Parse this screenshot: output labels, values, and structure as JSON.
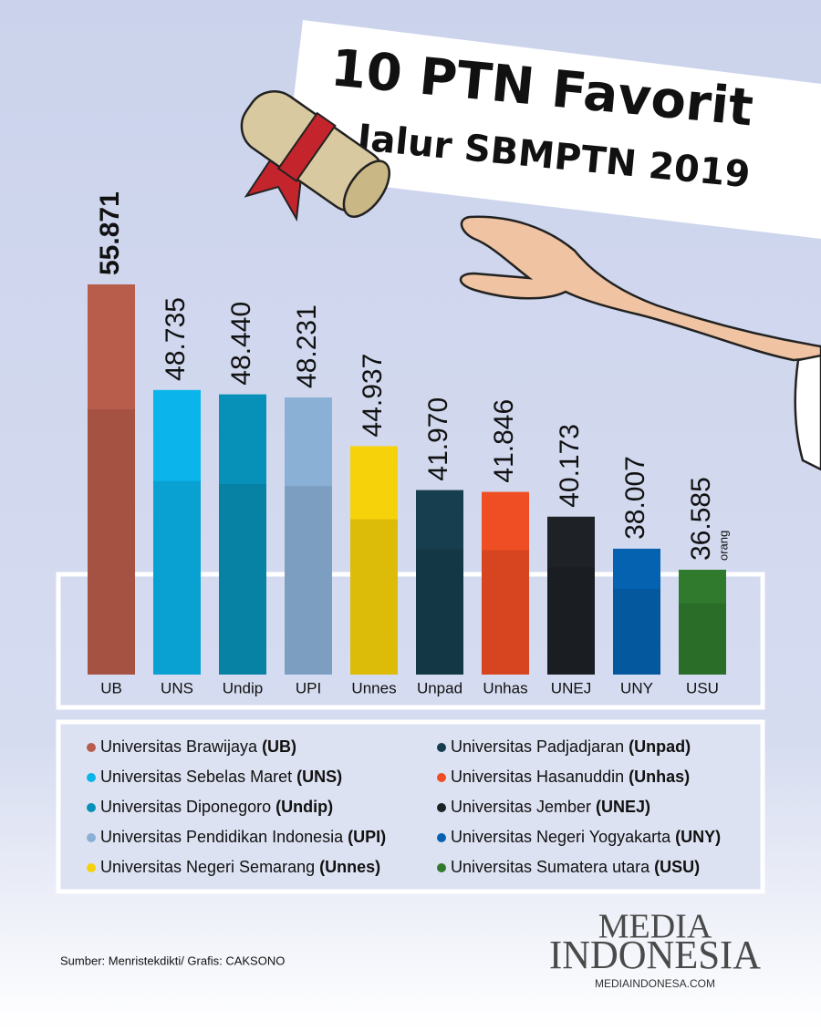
{
  "chart_data": {
    "type": "bar",
    "title": "10 PTN Favorit",
    "subtitle": "Jalur SBMPTN 2019",
    "categories": [
      "UB",
      "UNS",
      "Undip",
      "UPI",
      "Unnes",
      "Unpad",
      "Unhas",
      "UNEJ",
      "UNY",
      "USU"
    ],
    "values": [
      55871,
      48735,
      48440,
      48231,
      44937,
      41970,
      41846,
      40173,
      38007,
      36585
    ],
    "value_labels": [
      "55.871",
      "48.735",
      "48.440",
      "48.231",
      "44.937",
      "41.970",
      "41.846",
      "40.173",
      "38.007",
      "36.585"
    ],
    "colors": [
      "#b85c4b",
      "#0bb4ea",
      "#0891b8",
      "#8bb0d6",
      "#f5d20a",
      "#173e4f",
      "#ef4d23",
      "#1e2226",
      "#0462b0",
      "#2f7a2d"
    ],
    "unit_note": "orang",
    "legend": [
      {
        "name": "Universitas Brawijaya",
        "abbr": "(UB)"
      },
      {
        "name": "Universitas Sebelas Maret",
        "abbr": "(UNS)"
      },
      {
        "name": "Universitas Diponegoro",
        "abbr": "(Undip)"
      },
      {
        "name": "Universitas Pendidikan Indonesia",
        "abbr": "(UPI)"
      },
      {
        "name": "Universitas Negeri Semarang",
        "abbr": "(Unnes)"
      },
      {
        "name": "Universitas Padjadjaran",
        "abbr": "(Unpad)"
      },
      {
        "name": "Universitas Hasanuddin",
        "abbr": "(Unhas)"
      },
      {
        "name": "Universitas Jember",
        "abbr": "(UNEJ)"
      },
      {
        "name": "Universitas Negeri Yogyakarta",
        "abbr": "(UNY)"
      },
      {
        "name": "Universitas Sumatera utara",
        "abbr": "(USU)"
      }
    ],
    "source": "Sumber: Menristekdikti/ Grafis: CAKSONO",
    "logo": {
      "line1": "MEDIA",
      "line2": "INDONESIA",
      "url": "MEDIAINDONESA.COM"
    }
  }
}
